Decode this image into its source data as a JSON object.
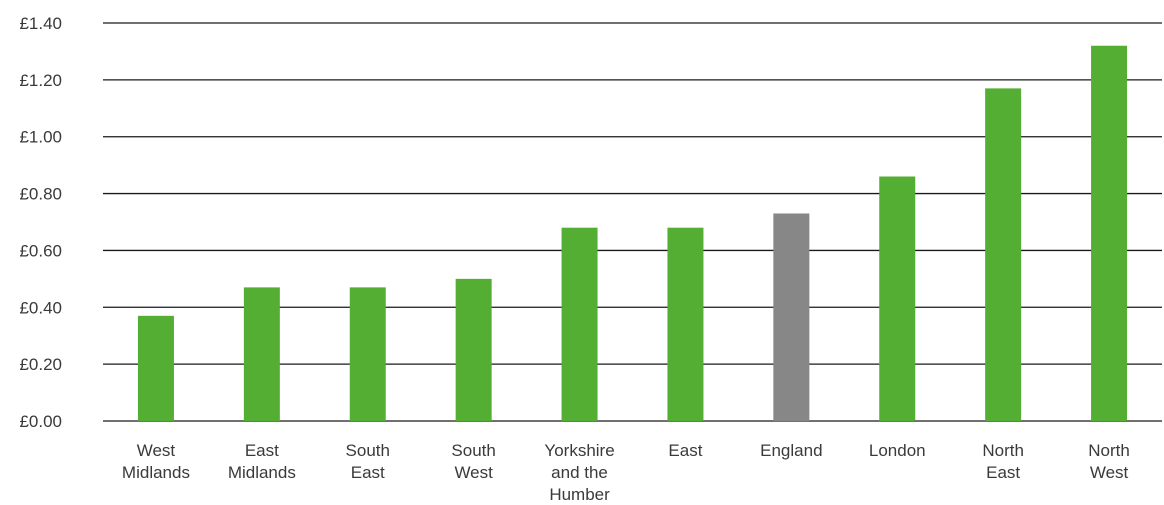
{
  "chart_data": {
    "type": "bar",
    "title": "",
    "xlabel": "",
    "ylabel": "",
    "ylim": [
      0,
      1.4
    ],
    "yticks": [
      {
        "value": 0.0,
        "label": "£0.00"
      },
      {
        "value": 0.2,
        "label": "£0.20"
      },
      {
        "value": 0.4,
        "label": "£0.40"
      },
      {
        "value": 0.6,
        "label": "£0.60"
      },
      {
        "value": 0.8,
        "label": "£0.80"
      },
      {
        "value": 1.0,
        "label": "£1.00"
      },
      {
        "value": 1.2,
        "label": "£1.20"
      },
      {
        "value": 1.4,
        "label": "£1.40"
      }
    ],
    "grid": true,
    "categories": [
      {
        "name": "West Midlands",
        "lines": [
          "West",
          "Midlands"
        ],
        "value": 0.37,
        "highlight": false
      },
      {
        "name": "East Midlands",
        "lines": [
          "East",
          "Midlands"
        ],
        "value": 0.47,
        "highlight": false
      },
      {
        "name": "South East",
        "lines": [
          "South",
          "East"
        ],
        "value": 0.47,
        "highlight": false
      },
      {
        "name": "South West",
        "lines": [
          "South",
          "West"
        ],
        "value": 0.5,
        "highlight": false
      },
      {
        "name": "Yorkshire and the Humber",
        "lines": [
          "Yorkshire",
          "and the",
          "Humber"
        ],
        "value": 0.68,
        "highlight": false
      },
      {
        "name": "East",
        "lines": [
          "East"
        ],
        "value": 0.68,
        "highlight": false
      },
      {
        "name": "England",
        "lines": [
          "England"
        ],
        "value": 0.73,
        "highlight": true
      },
      {
        "name": "London",
        "lines": [
          "London"
        ],
        "value": 0.86,
        "highlight": false
      },
      {
        "name": "North East",
        "lines": [
          "North",
          "East"
        ],
        "value": 1.17,
        "highlight": false
      },
      {
        "name": "North West",
        "lines": [
          "North",
          "West"
        ],
        "value": 1.32,
        "highlight": false
      }
    ],
    "colors": {
      "bar": "#54ae33",
      "highlight_bar": "#878787",
      "gridline": "#1a1a1a",
      "text": "#3a3a3a"
    }
  }
}
